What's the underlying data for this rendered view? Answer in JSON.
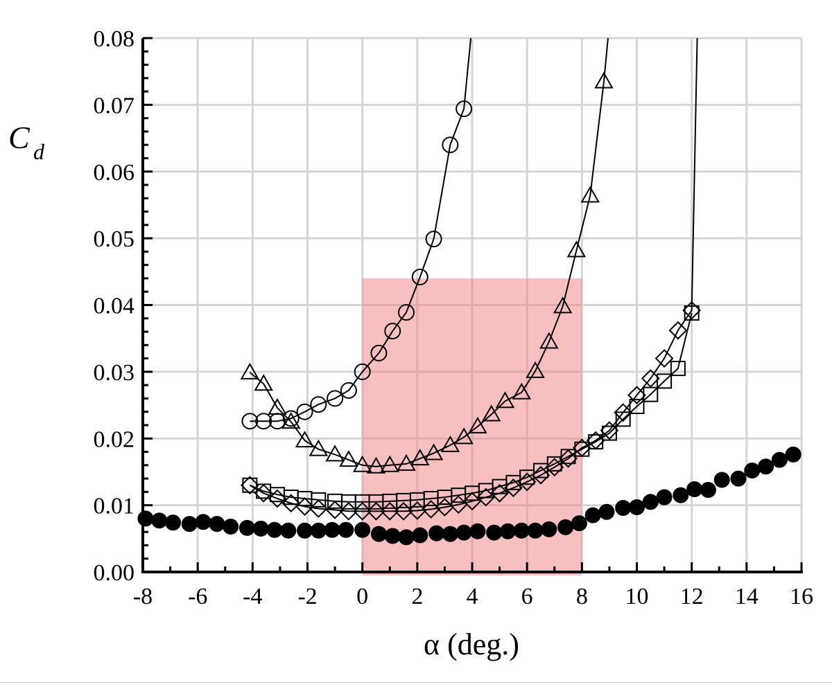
{
  "chart_data": {
    "type": "scatter",
    "title": "",
    "xlabel": "α (deg.)",
    "ylabel": "C",
    "ylabel_subscript": "d",
    "xlim": [
      -8,
      16
    ],
    "ylim": [
      0,
      0.08
    ],
    "x_ticks": [
      "-8",
      "-6",
      "-4",
      "-2",
      "0",
      "2",
      "4",
      "6",
      "8",
      "10",
      "12",
      "14",
      "16"
    ],
    "y_ticks": [
      "0.00",
      "0.01",
      "0.02",
      "0.03",
      "0.04",
      "0.05",
      "0.06",
      "0.07",
      "0.08"
    ],
    "grid": true,
    "highlight_region": {
      "x": [
        0,
        8
      ],
      "y": [
        0,
        0.044
      ],
      "color": "#f08080",
      "opacity": 0.5
    },
    "series": [
      {
        "marker": "circle-open",
        "line": true,
        "x": [
          -4.1,
          -3.6,
          -3.1,
          -2.6,
          -2.1,
          -1.6,
          -1.0,
          -0.5,
          0.0,
          0.6,
          1.1,
          1.6,
          2.1,
          2.6,
          3.2,
          3.7
        ],
        "y": [
          0.0226,
          0.0226,
          0.0226,
          0.023,
          0.024,
          0.0251,
          0.026,
          0.0272,
          0.03,
          0.0328,
          0.0361,
          0.0389,
          0.0442,
          0.0499,
          0.064,
          0.0694
        ],
        "curve_extends_to": [
          3.95,
          0.08
        ]
      },
      {
        "marker": "triangle-open",
        "line": true,
        "x": [
          -4.1,
          -3.6,
          -3.1,
          -2.6,
          -2.1,
          -1.6,
          -1.0,
          -0.5,
          0.0,
          0.5,
          1.0,
          1.6,
          2.1,
          2.6,
          3.2,
          3.7,
          4.2,
          4.7,
          5.2,
          5.8,
          6.3,
          6.8,
          7.3,
          7.8,
          8.3,
          8.8
        ],
        "y": [
          0.0299,
          0.0282,
          0.0246,
          0.0225,
          0.0197,
          0.0184,
          0.0176,
          0.0168,
          0.016,
          0.0158,
          0.016,
          0.0162,
          0.017,
          0.0178,
          0.019,
          0.0202,
          0.0218,
          0.0236,
          0.0256,
          0.0269,
          0.0301,
          0.0345,
          0.0398,
          0.0482,
          0.0564,
          0.0735
        ],
        "curve_extends_to": [
          8.95,
          0.08
        ]
      },
      {
        "marker": "square-open",
        "line": true,
        "x": [
          -4.1,
          -3.6,
          -3.1,
          -2.6,
          -2.1,
          -1.6,
          -1.0,
          -0.5,
          0.0,
          0.5,
          1.0,
          1.5,
          2.0,
          2.5,
          3.0,
          3.5,
          4.0,
          4.5,
          5.0,
          5.5,
          6.0,
          6.5,
          7.0,
          7.5,
          8.0,
          8.5,
          9.0,
          9.5,
          10.0,
          10.5,
          11.0,
          11.5,
          12.0
        ],
        "y": [
          0.013,
          0.0121,
          0.0116,
          0.0112,
          0.011,
          0.0108,
          0.0106,
          0.0105,
          0.0105,
          0.0105,
          0.0106,
          0.0107,
          0.0108,
          0.011,
          0.0112,
          0.0115,
          0.0118,
          0.0122,
          0.0128,
          0.0134,
          0.0142,
          0.0152,
          0.0162,
          0.0173,
          0.0184,
          0.0195,
          0.0208,
          0.0229,
          0.0248,
          0.0266,
          0.0286,
          0.0305,
          0.0388
        ]
      },
      {
        "marker": "diamond-open",
        "line": true,
        "x": [
          -4.1,
          -3.6,
          -3.1,
          -2.6,
          -2.1,
          -1.6,
          -1.0,
          -0.5,
          0.0,
          0.5,
          1.0,
          1.5,
          2.0,
          2.5,
          3.0,
          3.5,
          4.0,
          4.5,
          5.0,
          5.5,
          6.0,
          6.5,
          7.0,
          7.5,
          8.0,
          8.5,
          9.0,
          9.5,
          10.0,
          10.5,
          11.0,
          11.5,
          12.0
        ],
        "y": [
          0.013,
          0.0118,
          0.011,
          0.0103,
          0.0098,
          0.0095,
          0.0093,
          0.0091,
          0.0091,
          0.0091,
          0.0091,
          0.0091,
          0.0092,
          0.0094,
          0.0097,
          0.0101,
          0.0106,
          0.0112,
          0.0118,
          0.0126,
          0.0135,
          0.0145,
          0.0157,
          0.017,
          0.0186,
          0.0197,
          0.0212,
          0.0239,
          0.0265,
          0.029,
          0.032,
          0.0362,
          0.0392
        ],
        "curve_extends_to": [
          12.2,
          0.08
        ]
      },
      {
        "marker": "circle-filled",
        "line": false,
        "x": [
          -7.9,
          -7.4,
          -6.9,
          -6.3,
          -5.8,
          -5.3,
          -4.8,
          -4.2,
          -3.7,
          -3.2,
          -2.7,
          -2.1,
          -1.6,
          -1.1,
          -0.6,
          0.0,
          0.6,
          1.1,
          1.6,
          2.1,
          2.7,
          3.2,
          3.7,
          4.2,
          4.8,
          5.3,
          5.8,
          6.3,
          6.8,
          7.4,
          7.9,
          8.4,
          8.9,
          9.5,
          10.0,
          10.5,
          11.0,
          11.6,
          12.1,
          12.6,
          13.1,
          13.7,
          14.2,
          14.7,
          15.2,
          15.7
        ],
        "y": [
          0.008,
          0.0077,
          0.0074,
          0.0072,
          0.0075,
          0.0072,
          0.0068,
          0.0066,
          0.0065,
          0.0063,
          0.0062,
          0.0062,
          0.0062,
          0.0063,
          0.0063,
          0.0063,
          0.0057,
          0.0054,
          0.0052,
          0.0055,
          0.0058,
          0.0057,
          0.0059,
          0.0061,
          0.0059,
          0.0061,
          0.0062,
          0.0062,
          0.0064,
          0.0067,
          0.0073,
          0.0085,
          0.009,
          0.0096,
          0.0097,
          0.0105,
          0.0112,
          0.0115,
          0.0124,
          0.0123,
          0.0138,
          0.014,
          0.0152,
          0.0158,
          0.0168,
          0.0176
        ]
      }
    ]
  }
}
